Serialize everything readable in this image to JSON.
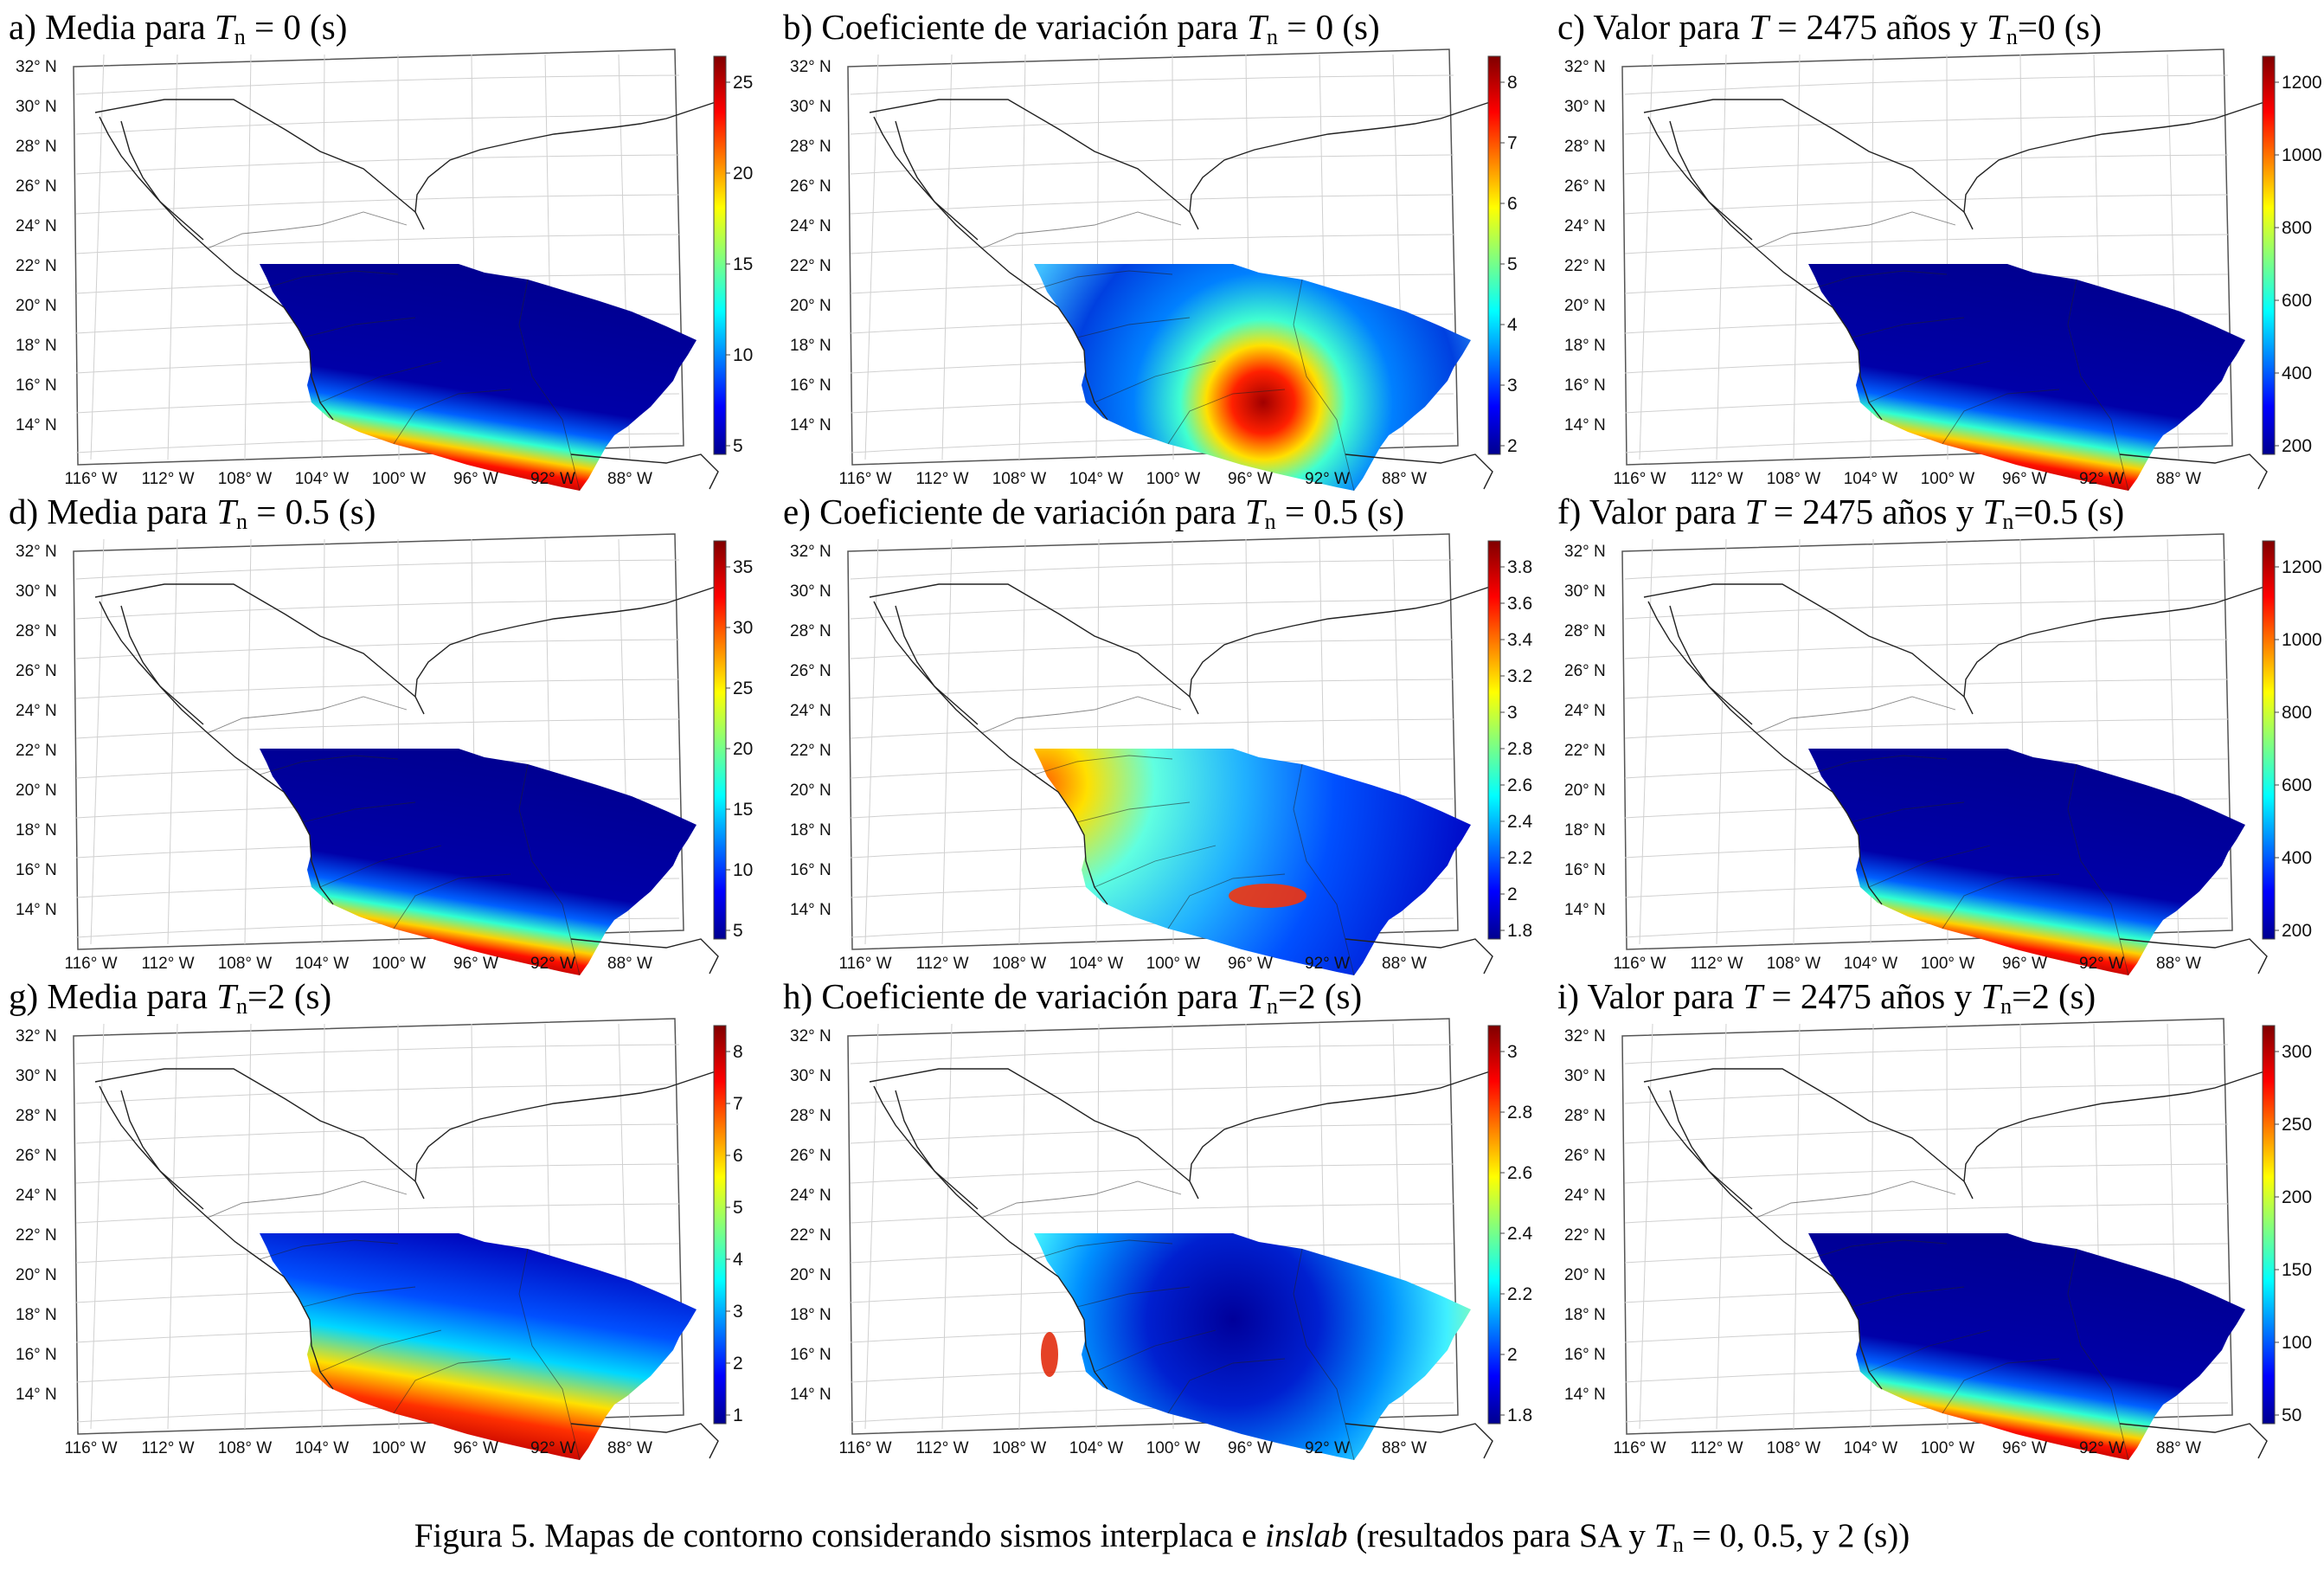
{
  "panels": [
    {
      "id": "a",
      "title_pre": "a) Media para ",
      "title_var": "T",
      "title_sub": "n",
      "title_post": " = 0 (s)",
      "colorbar_ticks": [
        "25",
        "20",
        "15",
        "10",
        "5"
      ],
      "pattern": "coast"
    },
    {
      "id": "b",
      "title_pre": "b) Coeficiente de variación para ",
      "title_var": "T",
      "title_sub": "n",
      "title_post": " = 0 (s)",
      "colorbar_ticks": [
        "8",
        "7",
        "6",
        "5",
        "4",
        "3",
        "2"
      ],
      "pattern": "cv0"
    },
    {
      "id": "c",
      "title_pre": "c) Valor para ",
      "title_var": "T",
      "title_sub": "",
      "title_post": " = 2475 años y ",
      "title_var2": "T",
      "title_sub2": "n",
      "title_post2": "=0 (s)",
      "colorbar_ticks": [
        "1200",
        "1000",
        "800",
        "600",
        "400",
        "200"
      ],
      "pattern": "coast"
    },
    {
      "id": "d",
      "title_pre": "d) Media para ",
      "title_var": "T",
      "title_sub": "n",
      "title_post": " = 0.5 (s)",
      "colorbar_ticks": [
        "35",
        "30",
        "25",
        "20",
        "15",
        "10",
        "5"
      ],
      "pattern": "coast"
    },
    {
      "id": "e",
      "title_pre": "e) Coeficiente de variación para ",
      "title_var": "T",
      "title_sub": "n",
      "title_post": " = 0.5 (s)",
      "colorbar_ticks": [
        "3.8",
        "3.6",
        "3.4",
        "3.2",
        "3",
        "2.8",
        "2.6",
        "2.4",
        "2.2",
        "2",
        "1.8"
      ],
      "pattern": "cvwest"
    },
    {
      "id": "f",
      "title_pre": "f) Valor para ",
      "title_var": "T",
      "title_sub": "",
      "title_post": " = 2475 años y ",
      "title_var2": "T",
      "title_sub2": "n",
      "title_post2": "=0.5 (s)",
      "colorbar_ticks": [
        "1200",
        "1000",
        "800",
        "600",
        "400",
        "200"
      ],
      "pattern": "coast"
    },
    {
      "id": "g",
      "title_pre": "g) Media para ",
      "title_var": "T",
      "title_sub": "n",
      "title_post": "=2 (s)",
      "colorbar_ticks": [
        "8",
        "7",
        "6",
        "5",
        "4",
        "3",
        "2",
        "1"
      ],
      "pattern": "coastwide"
    },
    {
      "id": "h",
      "title_pre": "h) Coeficiente de variación para ",
      "title_var": "T",
      "title_sub": "n",
      "title_post": "=2 (s)",
      "colorbar_ticks": [
        "3",
        "2.8",
        "2.6",
        "2.4",
        "2.2",
        "2",
        "1.8"
      ],
      "pattern": "cvring"
    },
    {
      "id": "i",
      "title_pre": "i) Valor para ",
      "title_var": "T",
      "title_sub": "",
      "title_post": " = 2475 años y ",
      "title_var2": "T",
      "title_sub2": "n",
      "title_post2": "=2 (s)",
      "colorbar_ticks": [
        "300",
        "250",
        "200",
        "150",
        "100",
        "50"
      ],
      "pattern": "coast"
    }
  ],
  "lat_labels": [
    "32° N",
    "30° N",
    "28° N",
    "26° N",
    "24° N",
    "22° N",
    "20° N",
    "18° N",
    "16° N",
    "14° N"
  ],
  "lon_labels": [
    "116° W",
    "112° W",
    "108° W",
    "104° W",
    "100° W",
    "96° W",
    "92° W",
    "88° W"
  ],
  "caption": {
    "pre": "Figura 5.  Mapas de contorno considerando sismos interplaca e ",
    "italic": "inslab",
    "mid": " (resultados para SA y ",
    "var": "T",
    "sub": "n",
    "post": " = 0, 0.5, y 2 (s))"
  },
  "colors": {
    "jet_dark_blue": "#00008f",
    "jet_blue": "#0050ff",
    "jet_cyan": "#00ffff",
    "jet_yellow": "#ffff00",
    "jet_red": "#ff0000",
    "jet_dark_red": "#800000"
  }
}
